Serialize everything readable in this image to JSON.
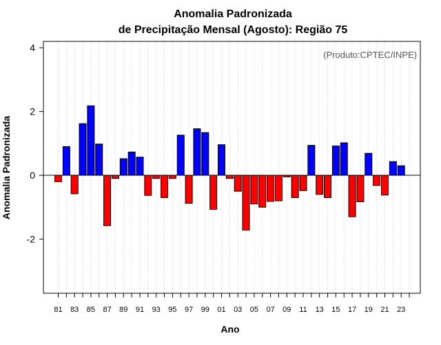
{
  "chart_data": {
    "type": "bar",
    "title": [
      "Anomalia Padronizada",
      "de Precipitação Mensal (Agosto): Região 75"
    ],
    "credit": "(Produto:CPTEC/INPE)",
    "xlabel": "Ano",
    "ylabel": "Anomalia Padronizada",
    "ylim": [
      -3.7,
      4.2
    ],
    "yticks": [
      -2,
      0,
      2,
      4
    ],
    "ytick_labels": [
      "-2",
      "0",
      "2",
      "4"
    ],
    "categories": [
      "81",
      "82",
      "83",
      "84",
      "85",
      "86",
      "87",
      "88",
      "89",
      "90",
      "91",
      "92",
      "93",
      "94",
      "95",
      "96",
      "97",
      "98",
      "99",
      "00",
      "01",
      "02",
      "03",
      "04",
      "05",
      "06",
      "07",
      "08",
      "09",
      "10",
      "11",
      "12",
      "13",
      "14",
      "15",
      "16",
      "17",
      "18",
      "19",
      "20",
      "21",
      "22",
      "23",
      "24"
    ],
    "xtick_labels": [
      "81",
      "83",
      "85",
      "87",
      "89",
      "91",
      "93",
      "95",
      "97",
      "99",
      "01",
      "03",
      "05",
      "07",
      "09",
      "11",
      "13",
      "15",
      "17",
      "19",
      "21",
      "23"
    ],
    "values": [
      -0.2,
      0.9,
      -0.58,
      1.62,
      2.18,
      0.98,
      -1.58,
      -0.1,
      0.52,
      0.73,
      0.57,
      -0.63,
      -0.1,
      -0.7,
      -0.1,
      1.26,
      -0.88,
      1.46,
      1.34,
      -1.07,
      0.96,
      -0.1,
      -0.5,
      -1.72,
      -0.9,
      -1.0,
      -0.82,
      -0.8,
      -0.05,
      -0.7,
      -0.48,
      0.94,
      -0.6,
      -0.7,
      0.92,
      1.02,
      -1.3,
      -0.83,
      0.69,
      -0.32,
      -0.62,
      0.43,
      0.3,
      0
    ],
    "colors": {
      "positive": "#0000ff",
      "negative": "#ff0000",
      "grid": "#d3d3d3"
    },
    "grid": true,
    "reference_line": 0
  }
}
